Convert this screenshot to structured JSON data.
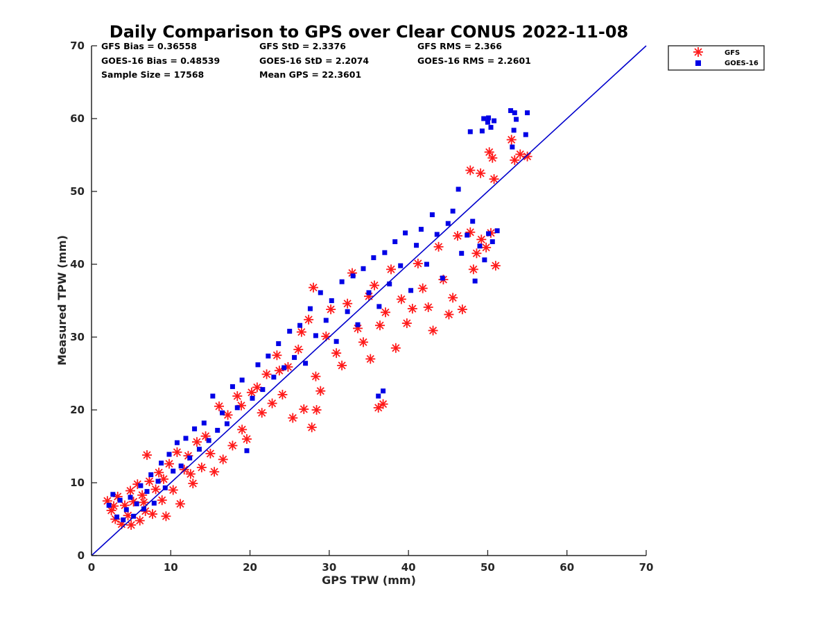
{
  "chart_data": {
    "type": "scatter",
    "title": "Daily Comparison to GPS over Clear CONUS 2022-11-08",
    "xlabel": "GPS TPW (mm)",
    "ylabel": "Measured TPW (mm)",
    "xlim": [
      0,
      70
    ],
    "ylim": [
      0,
      70
    ],
    "xticks": [
      0,
      10,
      20,
      30,
      40,
      50,
      60,
      70
    ],
    "yticks": [
      0,
      10,
      20,
      30,
      40,
      50,
      60,
      70
    ],
    "xtick_labels": [
      "0",
      "10",
      "20",
      "30",
      "40",
      "50",
      "60",
      "70"
    ],
    "ytick_labels": [
      "0",
      "10",
      "20",
      "30",
      "40",
      "50",
      "60",
      "70"
    ],
    "grid": false,
    "legend_position": "outside-top-right",
    "stats": [
      [
        "GFS Bias = 0.36558",
        "GFS StD = 2.3376",
        "GFS RMS = 2.366"
      ],
      [
        "GOES-16 Bias = 0.48539",
        "GOES-16 StD = 2.2074",
        "GOES-16 RMS = 2.2601"
      ],
      [
        "Sample Size = 17568",
        "Mean GPS = 22.3601"
      ]
    ],
    "reference_line": {
      "name": "1:1 line",
      "x": [
        0,
        70
      ],
      "y": [
        0,
        70
      ],
      "color": "#0000cc"
    },
    "series": [
      {
        "name": "GFS",
        "marker": "asterisk",
        "color": "#ff1a1a",
        "points": [
          [
            2.0,
            7.5
          ],
          [
            2.5,
            6.2
          ],
          [
            3.0,
            5.0
          ],
          [
            3.3,
            8.1
          ],
          [
            3.8,
            4.3
          ],
          [
            4.2,
            6.9
          ],
          [
            4.6,
            5.5
          ],
          [
            5.0,
            4.2
          ],
          [
            5.3,
            7.4
          ],
          [
            5.8,
            9.8
          ],
          [
            6.1,
            4.8
          ],
          [
            6.4,
            8.3
          ],
          [
            6.8,
            6.1
          ],
          [
            7.0,
            13.8
          ],
          [
            7.3,
            10.2
          ],
          [
            7.7,
            5.7
          ],
          [
            8.1,
            9.1
          ],
          [
            8.5,
            11.4
          ],
          [
            8.9,
            7.6
          ],
          [
            9.4,
            5.4
          ],
          [
            9.8,
            12.6
          ],
          [
            10.3,
            9.0
          ],
          [
            10.8,
            14.2
          ],
          [
            11.2,
            7.1
          ],
          [
            11.7,
            11.8
          ],
          [
            12.2,
            13.7
          ],
          [
            12.8,
            9.9
          ],
          [
            13.3,
            15.6
          ],
          [
            13.9,
            12.1
          ],
          [
            14.4,
            16.4
          ],
          [
            15.0,
            14.0
          ],
          [
            15.5,
            11.5
          ],
          [
            16.1,
            20.5
          ],
          [
            16.6,
            13.2
          ],
          [
            17.2,
            19.3
          ],
          [
            17.8,
            15.1
          ],
          [
            18.4,
            21.9
          ],
          [
            19.0,
            17.3
          ],
          [
            19.6,
            16.0
          ],
          [
            20.2,
            22.4
          ],
          [
            20.9,
            23.1
          ],
          [
            21.5,
            19.6
          ],
          [
            22.1,
            24.9
          ],
          [
            22.8,
            20.9
          ],
          [
            23.4,
            27.5
          ],
          [
            24.1,
            22.1
          ],
          [
            24.8,
            25.9
          ],
          [
            25.4,
            18.9
          ],
          [
            26.1,
            28.3
          ],
          [
            26.8,
            20.1
          ],
          [
            27.4,
            32.4
          ],
          [
            28.0,
            36.8
          ],
          [
            28.3,
            24.6
          ],
          [
            28.9,
            22.6
          ],
          [
            27.8,
            17.6
          ],
          [
            28.4,
            20.0
          ],
          [
            29.6,
            30.1
          ],
          [
            30.2,
            33.8
          ],
          [
            30.9,
            27.8
          ],
          [
            31.6,
            26.1
          ],
          [
            32.3,
            34.6
          ],
          [
            32.9,
            38.8
          ],
          [
            33.6,
            31.2
          ],
          [
            34.3,
            29.3
          ],
          [
            35.0,
            35.6
          ],
          [
            35.2,
            27.0
          ],
          [
            36.2,
            20.3
          ],
          [
            36.8,
            20.8
          ],
          [
            35.7,
            37.1
          ],
          [
            36.4,
            31.6
          ],
          [
            37.1,
            33.4
          ],
          [
            37.8,
            39.3
          ],
          [
            38.4,
            28.5
          ],
          [
            39.1,
            35.2
          ],
          [
            39.8,
            31.9
          ],
          [
            40.5,
            33.9
          ],
          [
            41.2,
            40.1
          ],
          [
            41.8,
            36.7
          ],
          [
            42.5,
            34.1
          ],
          [
            43.1,
            30.9
          ],
          [
            43.8,
            42.4
          ],
          [
            44.4,
            37.9
          ],
          [
            45.1,
            33.1
          ],
          [
            45.6,
            35.4
          ],
          [
            46.2,
            43.9
          ],
          [
            46.8,
            33.8
          ],
          [
            47.8,
            44.4
          ],
          [
            48.2,
            39.3
          ],
          [
            48.6,
            41.5
          ],
          [
            49.2,
            43.4
          ],
          [
            49.8,
            42.3
          ],
          [
            50.4,
            44.3
          ],
          [
            51.0,
            39.8
          ],
          [
            47.8,
            52.9
          ],
          [
            49.1,
            52.5
          ],
          [
            50.2,
            55.4
          ],
          [
            50.6,
            54.6
          ],
          [
            50.8,
            51.7
          ],
          [
            53.0,
            57.1
          ],
          [
            53.4,
            54.3
          ],
          [
            54.1,
            55.1
          ],
          [
            55.0,
            54.8
          ],
          [
            2.8,
            6.8
          ],
          [
            4.9,
            8.9
          ],
          [
            6.6,
            7.3
          ],
          [
            9.1,
            10.5
          ],
          [
            12.5,
            11.2
          ],
          [
            18.9,
            20.6
          ],
          [
            23.7,
            25.4
          ],
          [
            26.5,
            30.7
          ]
        ]
      },
      {
        "name": "GOES-16",
        "marker": "square",
        "color": "#0000e6",
        "points": [
          [
            2.2,
            6.9
          ],
          [
            2.7,
            8.4
          ],
          [
            3.2,
            5.3
          ],
          [
            3.6,
            7.6
          ],
          [
            4.0,
            4.9
          ],
          [
            4.4,
            6.3
          ],
          [
            4.9,
            8.0
          ],
          [
            5.3,
            5.4
          ],
          [
            5.7,
            7.1
          ],
          [
            6.2,
            9.6
          ],
          [
            6.6,
            6.4
          ],
          [
            7.0,
            8.8
          ],
          [
            7.5,
            11.1
          ],
          [
            7.9,
            7.2
          ],
          [
            8.4,
            10.2
          ],
          [
            8.8,
            12.7
          ],
          [
            9.3,
            9.3
          ],
          [
            9.8,
            13.9
          ],
          [
            10.3,
            11.6
          ],
          [
            10.8,
            15.5
          ],
          [
            11.3,
            12.3
          ],
          [
            11.9,
            16.1
          ],
          [
            12.4,
            13.4
          ],
          [
            13.0,
            17.4
          ],
          [
            13.6,
            14.6
          ],
          [
            14.2,
            18.2
          ],
          [
            14.8,
            15.8
          ],
          [
            15.3,
            21.9
          ],
          [
            15.9,
            17.2
          ],
          [
            16.5,
            19.6
          ],
          [
            17.1,
            18.1
          ],
          [
            17.8,
            23.2
          ],
          [
            18.4,
            20.3
          ],
          [
            19.0,
            24.1
          ],
          [
            19.6,
            14.4
          ],
          [
            20.3,
            21.6
          ],
          [
            21.0,
            26.2
          ],
          [
            21.6,
            22.8
          ],
          [
            22.3,
            27.4
          ],
          [
            23.0,
            24.5
          ],
          [
            23.6,
            29.1
          ],
          [
            24.3,
            25.8
          ],
          [
            25.0,
            30.8
          ],
          [
            25.6,
            27.2
          ],
          [
            26.3,
            31.6
          ],
          [
            27.0,
            26.4
          ],
          [
            27.6,
            33.9
          ],
          [
            28.3,
            30.2
          ],
          [
            28.9,
            36.1
          ],
          [
            29.6,
            32.3
          ],
          [
            30.3,
            35.0
          ],
          [
            30.9,
            29.4
          ],
          [
            31.6,
            37.6
          ],
          [
            32.3,
            33.5
          ],
          [
            33.0,
            38.4
          ],
          [
            33.6,
            31.7
          ],
          [
            34.3,
            39.4
          ],
          [
            35.0,
            36.1
          ],
          [
            35.6,
            40.9
          ],
          [
            36.3,
            34.2
          ],
          [
            37.0,
            41.6
          ],
          [
            37.6,
            37.3
          ],
          [
            38.3,
            43.1
          ],
          [
            39.0,
            39.8
          ],
          [
            39.6,
            44.3
          ],
          [
            40.3,
            36.4
          ],
          [
            41.0,
            42.6
          ],
          [
            41.6,
            44.8
          ],
          [
            42.3,
            40.0
          ],
          [
            43.0,
            46.8
          ],
          [
            43.6,
            44.1
          ],
          [
            44.3,
            38.1
          ],
          [
            45.0,
            45.6
          ],
          [
            45.6,
            47.3
          ],
          [
            46.3,
            50.3
          ],
          [
            46.7,
            41.5
          ],
          [
            47.4,
            44.0
          ],
          [
            48.1,
            45.9
          ],
          [
            48.4,
            37.7
          ],
          [
            49.0,
            42.5
          ],
          [
            49.6,
            40.6
          ],
          [
            50.1,
            44.2
          ],
          [
            50.6,
            43.1
          ],
          [
            51.2,
            44.6
          ],
          [
            36.2,
            21.9
          ],
          [
            36.8,
            22.6
          ],
          [
            47.8,
            58.2
          ],
          [
            49.3,
            58.3
          ],
          [
            49.5,
            60.0
          ],
          [
            50.0,
            59.5
          ],
          [
            50.1,
            60.1
          ],
          [
            50.4,
            58.8
          ],
          [
            50.8,
            59.7
          ],
          [
            52.9,
            61.1
          ],
          [
            53.4,
            60.8
          ],
          [
            53.6,
            59.9
          ],
          [
            53.3,
            58.4
          ],
          [
            54.8,
            57.8
          ],
          [
            55.0,
            60.8
          ],
          [
            53.1,
            56.1
          ]
        ]
      }
    ]
  }
}
